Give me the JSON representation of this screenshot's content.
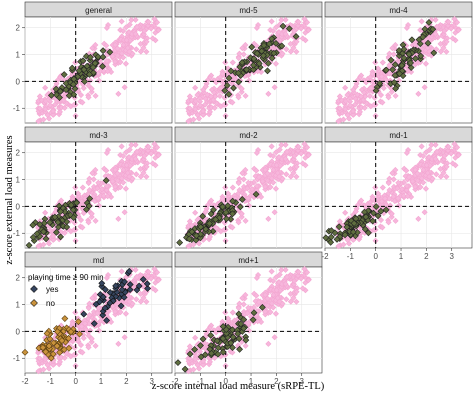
{
  "chart_data": {
    "type": "scatter",
    "title": "",
    "xlabel": "z-score internal load measure (sRPE-TL)",
    "ylabel": "z-score external load measures",
    "xlim": [
      -2,
      3.8
    ],
    "ylim": [
      -1.55,
      2.4
    ],
    "x_ticks": [
      "-2",
      "-1",
      "0",
      "1",
      "2",
      "3"
    ],
    "y_ticks": [
      "-1",
      "0",
      "1",
      "2"
    ],
    "x_ticks_values": [
      -2,
      -1,
      0,
      1,
      2,
      3
    ],
    "y_ticks_values": [
      -1,
      0,
      1,
      2
    ],
    "reference_lines": {
      "x": 0,
      "y": 0,
      "style": "dashed"
    },
    "grid": true,
    "panel_background": "#ebebeb",
    "strip_background": "#d9d9d9",
    "background_series": {
      "color": "#f7b6dc",
      "description_hidden": true
    },
    "panel_colors": {
      "highlight": "#5f6e3f",
      "yes": "#36455f",
      "no": "#c9923c"
    },
    "legend": {
      "title": "playing time ≥ 90 min",
      "entries": [
        "yes",
        "no"
      ],
      "placement": "inside-top-left of md panel"
    },
    "panels": [
      {
        "name": "general",
        "trend": {
          "cx": 0.3,
          "cy": 0.35,
          "slope": 0.7,
          "sx": 0.5,
          "sy": 0.25
        }
      },
      {
        "name": "md-5",
        "trend": {
          "cx": 1.1,
          "cy": 0.7,
          "slope": 0.75,
          "sx": 0.6,
          "sy": 0.25
        }
      },
      {
        "name": "md-4",
        "trend": {
          "cx": 1.3,
          "cy": 0.9,
          "slope": 0.8,
          "sx": 0.55,
          "sy": 0.3
        }
      },
      {
        "name": "md-3",
        "trend": {
          "cx": -0.6,
          "cy": -0.45,
          "slope": 0.6,
          "sx": 0.6,
          "sy": 0.25
        }
      },
      {
        "name": "md-2",
        "trend": {
          "cx": -0.6,
          "cy": -0.6,
          "slope": 0.6,
          "sx": 0.6,
          "sy": 0.2
        }
      },
      {
        "name": "md-1",
        "trend": {
          "cx": -0.9,
          "cy": -0.75,
          "slope": 0.5,
          "sx": 0.45,
          "sy": 0.18
        }
      },
      {
        "name": "md",
        "legend": true
      },
      {
        "name": "md+1",
        "trend": {
          "cx": -0.1,
          "cy": -0.3,
          "slope": 0.65,
          "sx": 0.7,
          "sy": 0.3
        }
      }
    ],
    "md_groups": {
      "yes": {
        "cx": 1.6,
        "cy": 1.3,
        "slope": 0.4,
        "sx": 0.55,
        "sy": 0.3
      },
      "no": {
        "cx": -0.8,
        "cy": -0.4,
        "slope": 0.6,
        "sx": 0.5,
        "sy": 0.3
      }
    }
  }
}
